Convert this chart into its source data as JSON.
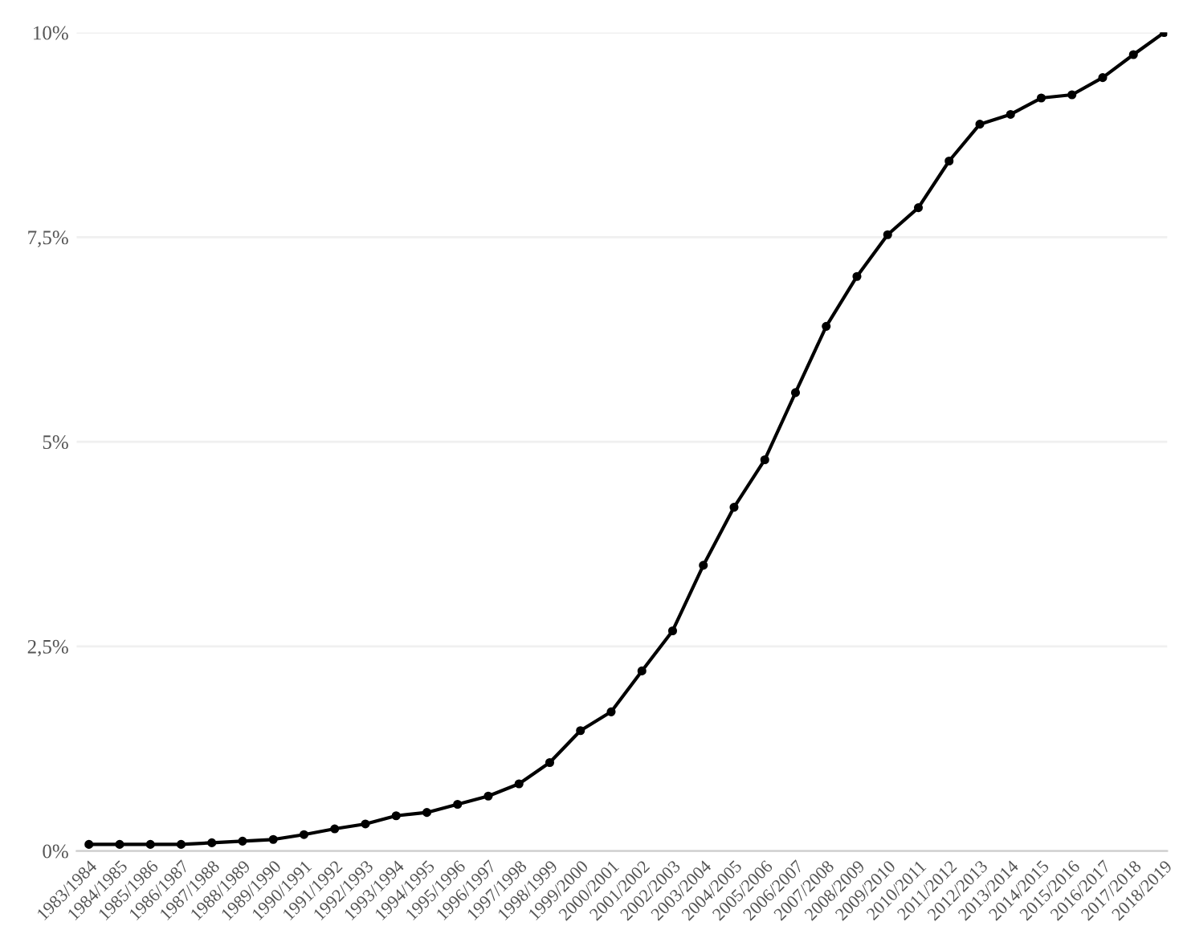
{
  "chart_data": {
    "type": "line",
    "categories": [
      "1983/1984",
      "1984/1985",
      "1985/1986",
      "1986/1987",
      "1987/1988",
      "1988/1989",
      "1989/1990",
      "1990/1991",
      "1991/1992",
      "1992/1993",
      "1993/1994",
      "1994/1995",
      "1995/1996",
      "1996/1997",
      "1997/1998",
      "1998/1999",
      "1999/2000",
      "2000/2001",
      "2001/2002",
      "2002/2003",
      "2003/2004",
      "2004/2005",
      "2005/2006",
      "2006/2007",
      "2007/2008",
      "2008/2009",
      "2009/2010",
      "2010/2011",
      "2011/2012",
      "2012/2013",
      "2013/2014",
      "2014/2015",
      "2015/2016",
      "2016/2017",
      "2017/2018",
      "2018/2019"
    ],
    "series": [
      {
        "color": "#000000",
        "values": [
          0.08,
          0.08,
          0.08,
          0.08,
          0.1,
          0.12,
          0.14,
          0.2,
          0.27,
          0.33,
          0.43,
          0.47,
          0.57,
          0.67,
          0.82,
          1.08,
          1.47,
          1.7,
          2.2,
          2.69,
          3.49,
          4.2,
          4.78,
          5.6,
          6.41,
          7.02,
          7.53,
          7.86,
          8.43,
          8.88,
          9.0,
          9.2,
          9.24,
          9.45,
          9.73,
          10.0
        ]
      }
    ],
    "ylim": [
      0,
      10
    ],
    "yticks": [
      {
        "value": 0,
        "label": "0%"
      },
      {
        "value": 2.5,
        "label": "2,5%"
      },
      {
        "value": 5,
        "label": "5%"
      },
      {
        "value": 7.5,
        "label": "7,5%"
      },
      {
        "value": 10,
        "label": "10%"
      }
    ],
    "grid": "y",
    "marker": "circle",
    "line_style": "solid"
  }
}
